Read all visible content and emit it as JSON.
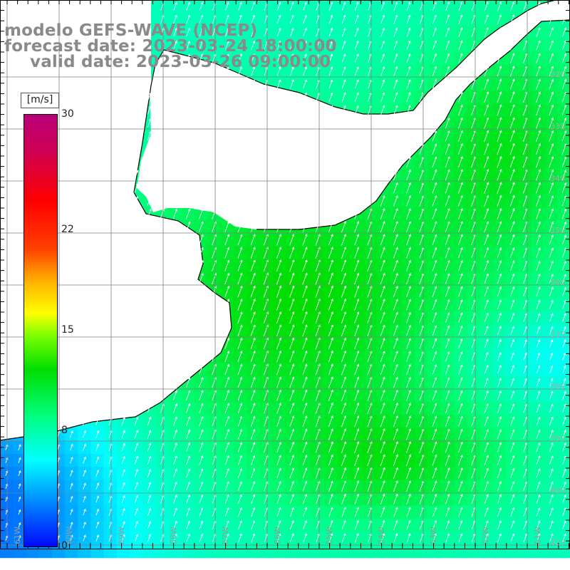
{
  "header": {
    "line1": "modelo GEFS-WAVE (NCEP)",
    "line2": "forecast date: 2023-03-24 18:00:00",
    "line3": "valid date: 2023-03-26 09:00:00"
  },
  "colorbar": {
    "units": "[m/s]",
    "ticks": [
      "30",
      "22",
      "15",
      "8",
      "0"
    ],
    "tick_values": [
      30,
      22,
      15,
      8,
      0
    ],
    "range": [
      0,
      30
    ]
  },
  "axes": {
    "lon_labels": [
      "61W",
      "60W",
      "59W",
      "58W",
      "57W",
      "56W",
      "55W",
      "54W",
      "53W",
      "52W",
      "51W"
    ],
    "lat_labels": [
      "32S",
      "33S",
      "34S",
      "35S",
      "36S",
      "37S",
      "38S",
      "39S",
      "40S",
      "41S"
    ],
    "lon_range": [
      -61.5,
      -50.5
    ],
    "lat_range": [
      -41.2,
      -30.5
    ],
    "grid": true
  },
  "colors": {
    "title": "#8a8a8a",
    "land": "#ffffff",
    "coast": "#000000",
    "grid": "#808080",
    "arrow": "#ffffff"
  }
}
